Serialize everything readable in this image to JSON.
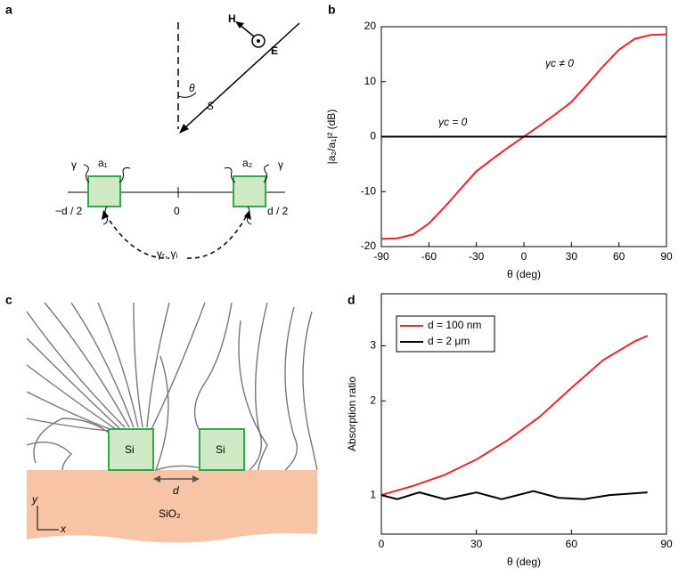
{
  "panel_labels": [
    "a",
    "b",
    "c",
    "d"
  ],
  "diagram_a": {
    "h_label": "H",
    "e_label": "E",
    "theta": "θ",
    "s_label": "S",
    "a1": "a₁",
    "a2": "a₂",
    "gamma_left": "γ",
    "gamma_right": "γ",
    "left_pos": "−d / 2",
    "origin": "0",
    "right_pos": "d / 2",
    "coupling": "γᵣ, γᵢ"
  },
  "diagram_c": {
    "si_left": "Si",
    "si_right": "Si",
    "gap": "d",
    "substrate": "SiO₂",
    "y_axis": "y",
    "x_axis": "x"
  },
  "chart_data": [
    {
      "type": "line",
      "x_label": "θ (deg)",
      "y_label": "|a₂/a₁|² (dB)",
      "xlim": [
        -90,
        90
      ],
      "xticks": [
        -90,
        -60,
        -30,
        0,
        30,
        60,
        90
      ],
      "ylim": [
        -20,
        20
      ],
      "yticks": [
        -20,
        -10,
        0,
        10,
        20
      ],
      "log_y": false,
      "annotations": [
        {
          "text": "γc ≠ 0",
          "color": "#e8262d"
        },
        {
          "text": "γc = 0",
          "color": "#000000"
        }
      ],
      "series": [
        {
          "color": "#e8262d",
          "x": [
            -90,
            -80,
            -70,
            -60,
            -50,
            -40,
            -30,
            -20,
            -10,
            0,
            10,
            20,
            30,
            40,
            50,
            60,
            70,
            80,
            90
          ],
          "values": [
            -18.6,
            -18.5,
            -17.8,
            -15.8,
            -12.8,
            -9.5,
            -6.3,
            -4.1,
            -2,
            0,
            2,
            4.1,
            6.3,
            9.5,
            12.8,
            15.8,
            17.8,
            18.5,
            18.6
          ]
        },
        {
          "color": "#000000",
          "x": [
            -90,
            90
          ],
          "values": [
            0,
            0
          ]
        }
      ]
    },
    {
      "type": "line",
      "x_label": "θ (deg)",
      "y_label": "Absorption ratio",
      "xlim": [
        0,
        90
      ],
      "xticks": [
        0,
        30,
        60,
        90
      ],
      "ylim": [
        0.75,
        4.4
      ],
      "yticks": [
        1,
        2,
        3
      ],
      "log_y": true,
      "legend": "top-left",
      "series": [
        {
          "name": "d = 100 nm",
          "color": "#e8262d",
          "x": [
            0,
            10,
            20,
            30,
            40,
            50,
            60,
            70,
            80,
            84
          ],
          "values": [
            1.0,
            1.07,
            1.16,
            1.3,
            1.5,
            1.78,
            2.2,
            2.7,
            3.1,
            3.23
          ]
        },
        {
          "name": "d = 2 μm",
          "color": "#000000",
          "x": [
            0,
            5,
            12,
            20,
            30,
            38,
            48,
            56,
            64,
            72,
            84
          ],
          "values": [
            1.0,
            0.97,
            1.02,
            0.97,
            1.02,
            0.97,
            1.03,
            0.98,
            0.97,
            1.0,
            1.02
          ]
        }
      ]
    }
  ]
}
